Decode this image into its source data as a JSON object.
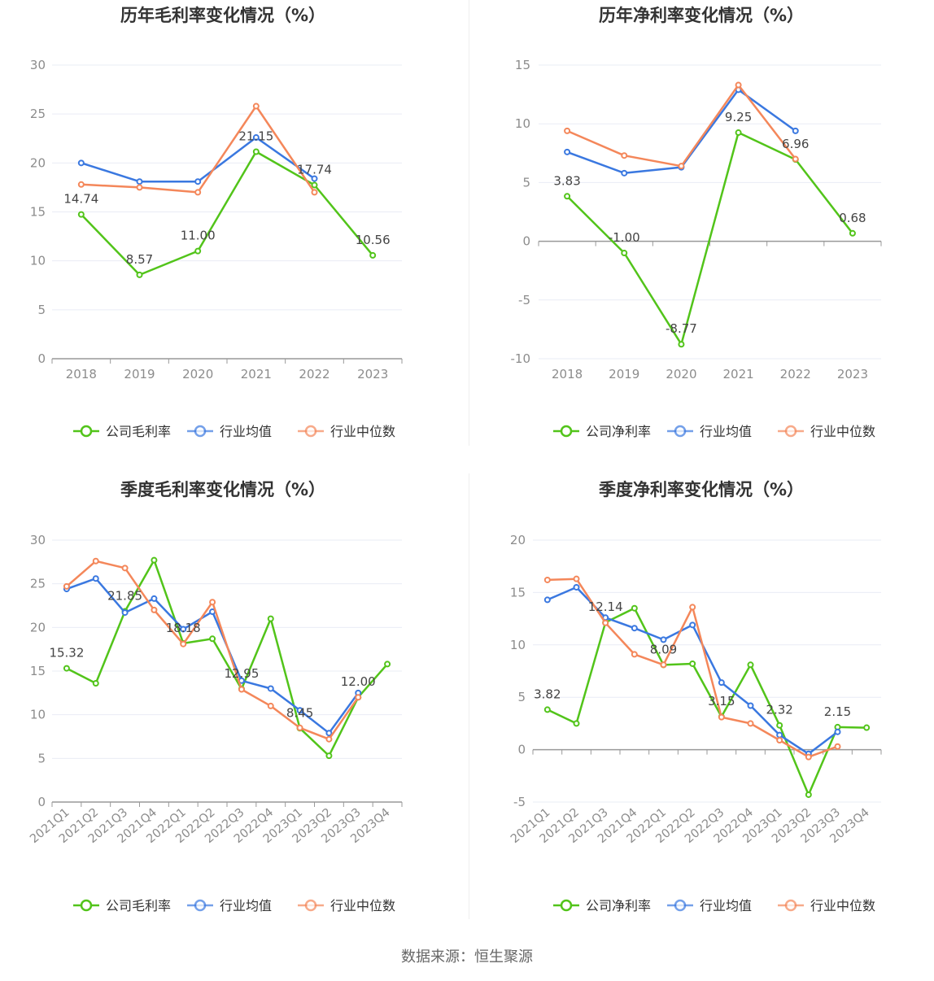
{
  "colors": {
    "company": "#52c41a",
    "avg": "#3a78e0",
    "median": "#f4875a",
    "grid": "#e9ecf5",
    "axis": "#999999",
    "axis_text": "#8c8c8c",
    "title": "#333333",
    "label": "#444444"
  },
  "source": "数据来源：恒生聚源",
  "chart_data": [
    {
      "type": "line",
      "title": "历年毛利率变化情况（%）",
      "categories": [
        "2018",
        "2019",
        "2020",
        "2021",
        "2022",
        "2023"
      ],
      "ylim": [
        0,
        30
      ],
      "yticks": [
        0,
        5,
        10,
        15,
        20,
        25,
        30
      ],
      "ytick_labels": [
        "0",
        "5",
        "10",
        "15",
        "20",
        "25",
        "30"
      ],
      "grid": true,
      "legend_position": "bottom",
      "series": [
        {
          "key": "company",
          "name": "公司毛利率",
          "values": [
            14.74,
            8.57,
            11.0,
            21.15,
            17.74,
            10.56
          ],
          "labels": [
            "14.74",
            "8.57",
            "11.00",
            "21.15",
            "17.74",
            "10.56"
          ]
        },
        {
          "key": "avg",
          "name": "行业均值",
          "values": [
            20.0,
            18.1,
            18.1,
            22.6,
            18.4,
            null
          ]
        },
        {
          "key": "median",
          "name": "行业中位数",
          "values": [
            17.8,
            17.5,
            17.0,
            25.8,
            17.0,
            null
          ]
        }
      ]
    },
    {
      "type": "line",
      "title": "历年净利率变化情况（%）",
      "categories": [
        "2018",
        "2019",
        "2020",
        "2021",
        "2022",
        "2023"
      ],
      "ylim": [
        -10,
        15
      ],
      "yticks": [
        -10,
        -5,
        0,
        5,
        10,
        15
      ],
      "ytick_labels": [
        "-10",
        "-5",
        "0",
        "5",
        "10",
        "15"
      ],
      "grid": true,
      "legend_position": "bottom",
      "series": [
        {
          "key": "company",
          "name": "公司净利率",
          "values": [
            3.83,
            -1.0,
            -8.77,
            9.25,
            6.96,
            0.68
          ],
          "labels": [
            "3.83",
            "-1.00",
            "-8.77",
            "9.25",
            "6.96",
            "0.68"
          ]
        },
        {
          "key": "avg",
          "name": "行业均值",
          "values": [
            7.6,
            5.8,
            6.3,
            12.9,
            9.4,
            null
          ]
        },
        {
          "key": "median",
          "name": "行业中位数",
          "values": [
            9.4,
            7.3,
            6.4,
            13.3,
            7.0,
            null
          ]
        }
      ]
    },
    {
      "type": "line",
      "title": "季度毛利率变化情况（%）",
      "categories": [
        "2021Q1",
        "2021Q2",
        "2021Q3",
        "2021Q4",
        "2022Q1",
        "2022Q2",
        "2022Q3",
        "2022Q4",
        "2023Q1",
        "2023Q2",
        "2023Q3",
        "2023Q4"
      ],
      "ylim": [
        0,
        30
      ],
      "yticks": [
        0,
        5,
        10,
        15,
        20,
        25,
        30
      ],
      "ytick_labels": [
        "0",
        "5",
        "10",
        "15",
        "20",
        "25",
        "30"
      ],
      "grid": true,
      "rotate_x_labels": true,
      "legend_position": "bottom",
      "series": [
        {
          "key": "company",
          "name": "公司毛利率",
          "values": [
            15.32,
            13.6,
            21.85,
            27.7,
            18.18,
            18.7,
            12.95,
            21.0,
            8.45,
            5.3,
            12.0,
            15.8
          ],
          "labels": [
            "15.32",
            "",
            "21.85",
            "",
            "18.18",
            "",
            "12.95",
            "",
            "8.45",
            "",
            "12.00",
            ""
          ]
        },
        {
          "key": "avg",
          "name": "行业均值",
          "values": [
            24.4,
            25.6,
            21.7,
            23.3,
            19.8,
            21.8,
            13.9,
            13.0,
            10.5,
            7.9,
            12.5,
            null
          ]
        },
        {
          "key": "median",
          "name": "行业中位数",
          "values": [
            24.7,
            27.6,
            26.8,
            22.0,
            18.1,
            22.9,
            12.9,
            11.0,
            8.5,
            7.2,
            12.0,
            null
          ]
        }
      ]
    },
    {
      "type": "line",
      "title": "季度净利率变化情况（%）",
      "categories": [
        "2021Q1",
        "2021Q2",
        "2021Q3",
        "2021Q4",
        "2022Q1",
        "2022Q2",
        "2022Q3",
        "2022Q4",
        "2023Q1",
        "2023Q2",
        "2023Q3",
        "2023Q4"
      ],
      "ylim": [
        -5,
        20
      ],
      "yticks": [
        -5,
        0,
        5,
        10,
        15,
        20
      ],
      "ytick_labels": [
        "-5",
        "0",
        "5",
        "10",
        "15",
        "20"
      ],
      "grid": true,
      "rotate_x_labels": true,
      "legend_position": "bottom",
      "series": [
        {
          "key": "company",
          "name": "公司净利率",
          "values": [
            3.82,
            2.5,
            12.14,
            13.5,
            8.09,
            8.2,
            3.15,
            8.1,
            2.32,
            -4.3,
            2.15,
            2.1
          ],
          "labels": [
            "3.82",
            "",
            "12.14",
            "",
            "8.09",
            "",
            "3.15",
            "",
            "2.32",
            "",
            "2.15",
            ""
          ]
        },
        {
          "key": "avg",
          "name": "行业均值",
          "values": [
            14.3,
            15.5,
            12.6,
            11.6,
            10.5,
            11.9,
            6.4,
            4.2,
            1.4,
            -0.4,
            1.7,
            null
          ]
        },
        {
          "key": "median",
          "name": "行业中位数",
          "values": [
            16.2,
            16.3,
            12.1,
            9.1,
            8.1,
            13.6,
            3.1,
            2.5,
            0.9,
            -0.7,
            0.3,
            null
          ]
        }
      ]
    }
  ]
}
